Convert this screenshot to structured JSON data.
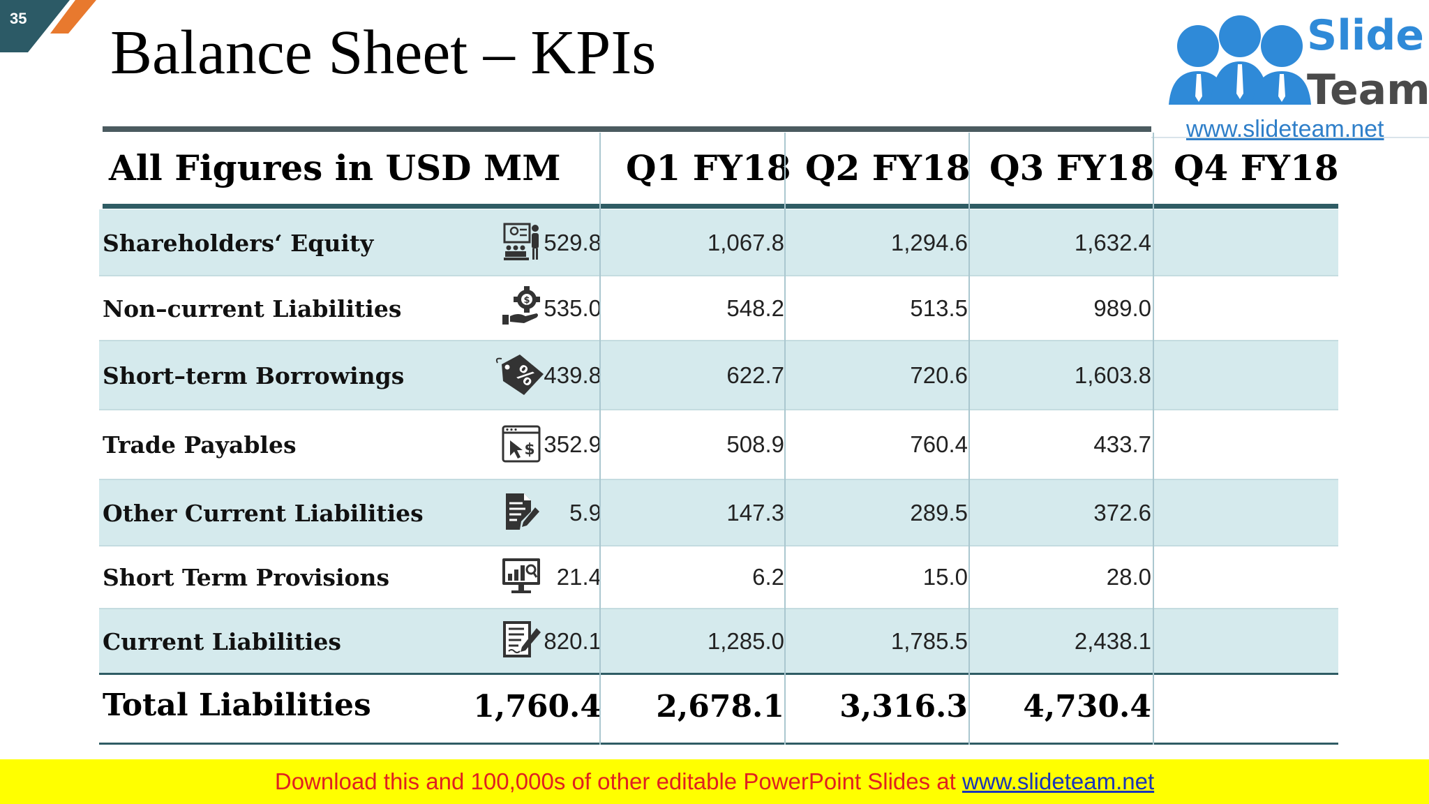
{
  "slide": {
    "number": "35"
  },
  "title": "Balance Sheet – KPIs",
  "logo": {
    "line1": "Slide",
    "line2": "Team",
    "url": "www.slideteam.net"
  },
  "table": {
    "header": {
      "label": "All Figures in USD MM",
      "columns": [
        "Q1 FY18",
        "Q2 FY18",
        "Q3 FY18",
        "Q4 FY18"
      ]
    },
    "rows": [
      {
        "label": "Shareholders‘ Equity",
        "icon": "presentation-icon",
        "values": [
          "529.8",
          "1,067.8",
          "1,294.6",
          "1,632.4"
        ]
      },
      {
        "label": "Non–current Liabilities",
        "icon": "hand-gear-dollar-icon",
        "values": [
          "535.0",
          "548.2",
          "513.5",
          "989.0"
        ]
      },
      {
        "label": "Short–term Borrowings",
        "icon": "percent-tag-icon",
        "values": [
          "439.8",
          "622.7",
          "720.6",
          "1,603.8"
        ]
      },
      {
        "label": "Trade Payables",
        "icon": "online-payment-icon",
        "values": [
          "352.9",
          "508.9",
          "760.4",
          "433.7"
        ]
      },
      {
        "label": "Other Current Liabilities",
        "icon": "document-edit-icon",
        "values": [
          "5.9",
          "147.3",
          "289.5",
          "372.6"
        ]
      },
      {
        "label": "Short Term Provisions",
        "icon": "monitor-chart-icon",
        "values": [
          "21.4",
          "6.2",
          "15.0",
          "28.0"
        ]
      },
      {
        "label": "Current Liabilities",
        "icon": "document-pen-icon",
        "values": [
          "820.1",
          "1,285.0",
          "1,785.5",
          "2,438.1"
        ]
      }
    ],
    "total": {
      "label": "Total Liabilities",
      "values": [
        "1,760.4",
        "2,678.1",
        "3,316.3",
        "4,730.4"
      ]
    }
  },
  "colors": {
    "accent": "#2f5c64",
    "row_shade": "#d5eaed",
    "footer_bg": "#ffff00",
    "footer_text": "#e02020",
    "link": "#1a35b8"
  },
  "footer": {
    "text": "Download this and 100,000s of other editable PowerPoint Slides at ",
    "link": "www.slideteam.net"
  }
}
